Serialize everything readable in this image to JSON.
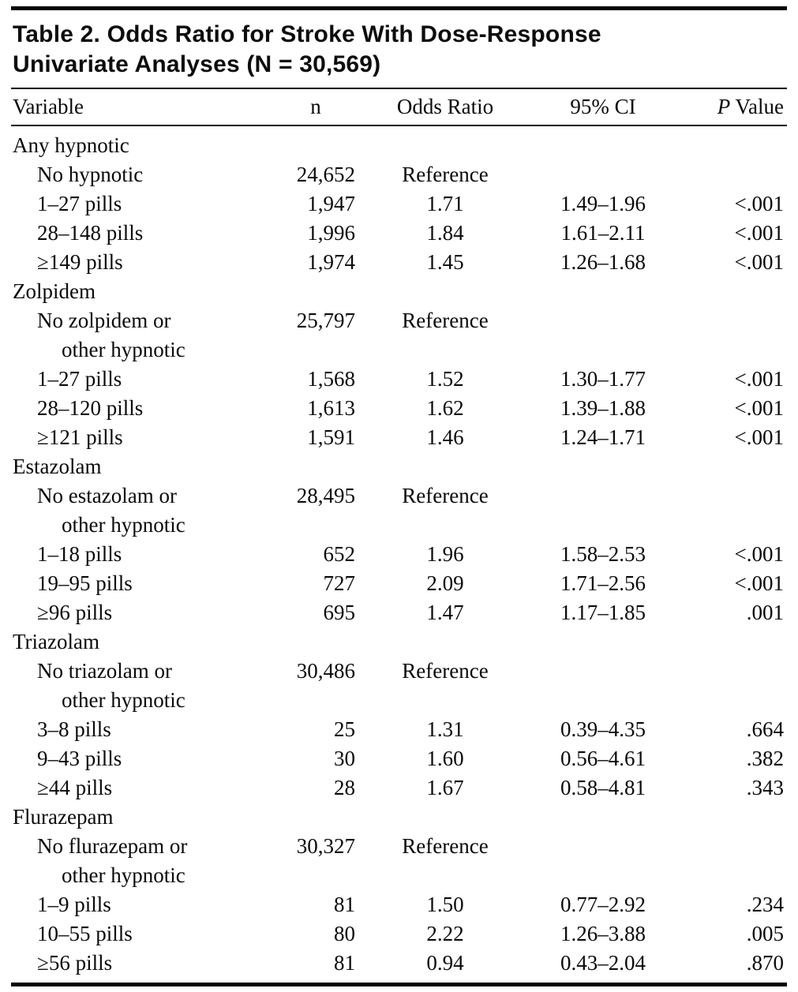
{
  "title": {
    "line1": "Table 2. Odds Ratio for Stroke With Dose-Response",
    "line2": "Univariate Analyses (N = 30,569)"
  },
  "columns": {
    "variable": "Variable",
    "n": "n",
    "odds_ratio": "Odds Ratio",
    "ci": "95% CI",
    "p_italic": "P",
    "p_rest": " Value"
  },
  "table": {
    "groups": [
      {
        "label": "Any hypnotic",
        "rows": [
          {
            "label": "No hypnotic",
            "label2": "",
            "n": "24,652",
            "odds_ratio": "Reference",
            "ci": "",
            "p": ""
          },
          {
            "label": "1–27 pills",
            "label2": "",
            "n": "1,947",
            "odds_ratio": "1.71",
            "ci": "1.49–1.96",
            "p": "<.001"
          },
          {
            "label": "28–148 pills",
            "label2": "",
            "n": "1,996",
            "odds_ratio": "1.84",
            "ci": "1.61–2.11",
            "p": "<.001"
          },
          {
            "label": "≥149 pills",
            "label2": "",
            "n": "1,974",
            "odds_ratio": "1.45",
            "ci": "1.26–1.68",
            "p": "<.001"
          }
        ]
      },
      {
        "label": "Zolpidem",
        "rows": [
          {
            "label": "No zolpidem or",
            "label2": "other hypnotic",
            "n": "25,797",
            "odds_ratio": "Reference",
            "ci": "",
            "p": ""
          },
          {
            "label": "1–27 pills",
            "label2": "",
            "n": "1,568",
            "odds_ratio": "1.52",
            "ci": "1.30–1.77",
            "p": "<.001"
          },
          {
            "label": "28–120 pills",
            "label2": "",
            "n": "1,613",
            "odds_ratio": "1.62",
            "ci": "1.39–1.88",
            "p": "<.001"
          },
          {
            "label": "≥121 pills",
            "label2": "",
            "n": "1,591",
            "odds_ratio": "1.46",
            "ci": "1.24–1.71",
            "p": "<.001"
          }
        ]
      },
      {
        "label": "Estazolam",
        "rows": [
          {
            "label": "No estazolam or",
            "label2": "other hypnotic",
            "n": "28,495",
            "odds_ratio": "Reference",
            "ci": "",
            "p": ""
          },
          {
            "label": "1–18 pills",
            "label2": "",
            "n": "652",
            "odds_ratio": "1.96",
            "ci": "1.58–2.53",
            "p": "<.001"
          },
          {
            "label": "19–95 pills",
            "label2": "",
            "n": "727",
            "odds_ratio": "2.09",
            "ci": "1.71–2.56",
            "p": "<.001"
          },
          {
            "label": "≥96 pills",
            "label2": "",
            "n": "695",
            "odds_ratio": "1.47",
            "ci": "1.17–1.85",
            "p": ".001"
          }
        ]
      },
      {
        "label": "Triazolam",
        "rows": [
          {
            "label": "No triazolam or",
            "label2": "other hypnotic",
            "n": "30,486",
            "odds_ratio": "Reference",
            "ci": "",
            "p": ""
          },
          {
            "label": "3–8 pills",
            "label2": "",
            "n": "25",
            "odds_ratio": "1.31",
            "ci": "0.39–4.35",
            "p": ".664"
          },
          {
            "label": "9–43 pills",
            "label2": "",
            "n": "30",
            "odds_ratio": "1.60",
            "ci": "0.56–4.61",
            "p": ".382"
          },
          {
            "label": "≥44 pills",
            "label2": "",
            "n": "28",
            "odds_ratio": "1.67",
            "ci": "0.58–4.81",
            "p": ".343"
          }
        ]
      },
      {
        "label": "Flurazepam",
        "rows": [
          {
            "label": "No flurazepam or",
            "label2": "other hypnotic",
            "n": "30,327",
            "odds_ratio": "Reference",
            "ci": "",
            "p": ""
          },
          {
            "label": "1–9 pills",
            "label2": "",
            "n": "81",
            "odds_ratio": "1.50",
            "ci": "0.77–2.92",
            "p": ".234"
          },
          {
            "label": "10–55 pills",
            "label2": "",
            "n": "80",
            "odds_ratio": "2.22",
            "ci": "1.26–3.88",
            "p": ".005"
          },
          {
            "label": "≥56 pills",
            "label2": "",
            "n": "81",
            "odds_ratio": "0.94",
            "ci": "0.43–2.04",
            "p": ".870"
          }
        ]
      }
    ]
  }
}
